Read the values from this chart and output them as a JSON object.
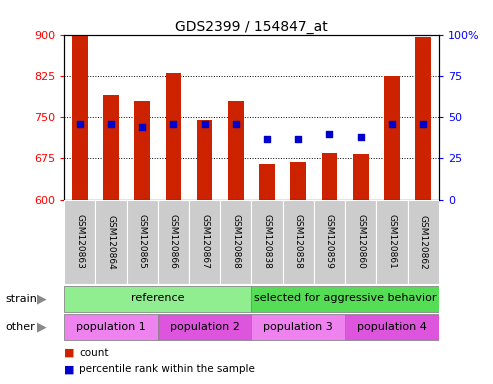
{
  "title": "GDS2399 / 154847_at",
  "categories": [
    "GSM120863",
    "GSM120864",
    "GSM120865",
    "GSM120866",
    "GSM120867",
    "GSM120868",
    "GSM120838",
    "GSM120858",
    "GSM120859",
    "GSM120860",
    "GSM120861",
    "GSM120862"
  ],
  "bar_values": [
    900,
    790,
    780,
    830,
    745,
    780,
    665,
    668,
    685,
    683,
    825,
    895
  ],
  "bar_bottom": 600,
  "percentile_values": [
    46,
    46,
    44,
    46,
    46,
    46,
    37,
    37,
    40,
    38,
    46,
    46
  ],
  "ylim_left": [
    600,
    900
  ],
  "ylim_right": [
    0,
    100
  ],
  "left_ticks": [
    600,
    675,
    750,
    825,
    900
  ],
  "right_ticks": [
    0,
    25,
    50,
    75,
    100
  ],
  "bar_color": "#cc2200",
  "percentile_color": "#0000cc",
  "plot_bg": "#ffffff",
  "strain_groups": [
    {
      "label": "reference",
      "start": 0,
      "end": 6,
      "color": "#90ee90"
    },
    {
      "label": "selected for aggressive behavior",
      "start": 6,
      "end": 12,
      "color": "#55dd55"
    }
  ],
  "other_groups": [
    {
      "label": "population 1",
      "start": 0,
      "end": 3,
      "color": "#ee82ee"
    },
    {
      "label": "population 2",
      "start": 3,
      "end": 6,
      "color": "#dd55dd"
    },
    {
      "label": "population 3",
      "start": 6,
      "end": 9,
      "color": "#ee82ee"
    },
    {
      "label": "population 4",
      "start": 9,
      "end": 12,
      "color": "#dd55dd"
    }
  ],
  "strain_label": "strain",
  "other_label": "other",
  "legend_items": [
    {
      "label": "count",
      "color": "#cc2200"
    },
    {
      "label": "percentile rank within the sample",
      "color": "#0000cc"
    }
  ],
  "tick_bg": "#cccccc",
  "fig_width": 4.93,
  "fig_height": 3.84,
  "dpi": 100
}
